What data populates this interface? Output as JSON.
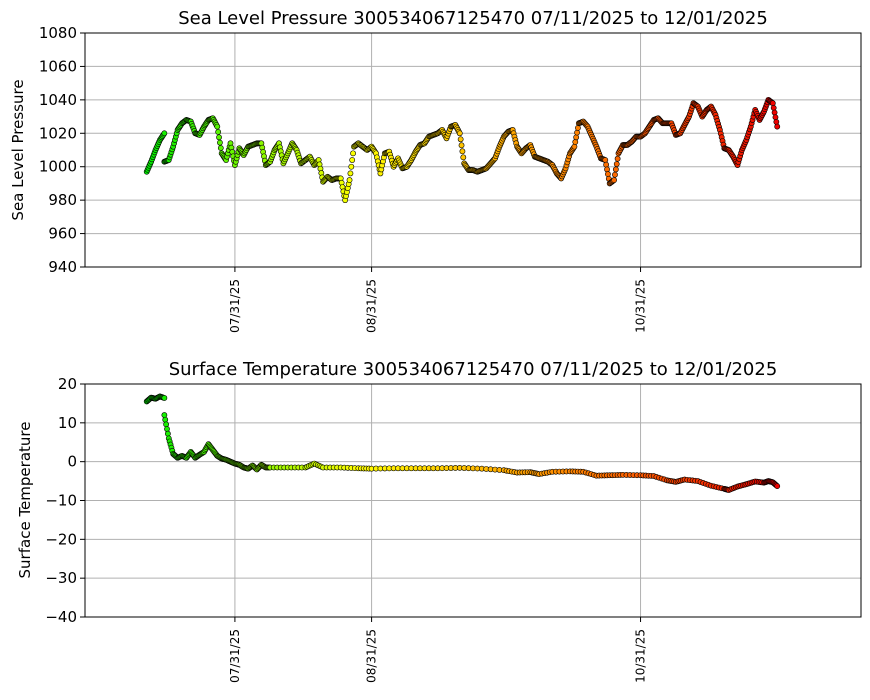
{
  "chart_data": [
    {
      "type": "scatter",
      "title": "Sea Level Pressure 300534067125470  07/11/2025 to 12/01/2025",
      "xlabel": "",
      "ylabel": "Sea Level Pressure",
      "ylim": [
        940,
        1080
      ],
      "yticks": [
        "940",
        "960",
        "980",
        "1000",
        "1020",
        "1040",
        "1060",
        "1080"
      ],
      "xlim": [
        "2025-06-27",
        "2025-12-20"
      ],
      "xticks": [
        {
          "date": "2025-07-31",
          "label": "07/31/25"
        },
        {
          "date": "2025-08-31",
          "label": "08/31/25"
        },
        {
          "date": "2025-10-31",
          "label": "10/31/25"
        }
      ],
      "grid": true,
      "color_gradient": [
        "#00ee00",
        "#ffff00",
        "#ff8800",
        "#ee0000"
      ],
      "points": [
        [
          "2025-07-11",
          997
        ],
        [
          "2025-07-12",
          1003
        ],
        [
          "2025-07-13",
          1010
        ],
        [
          "2025-07-14",
          1016
        ],
        [
          "2025-07-15",
          1020
        ],
        [
          "2025-07-15",
          1003
        ],
        [
          "2025-07-16",
          1004
        ],
        [
          "2025-07-17",
          1012
        ],
        [
          "2025-07-18",
          1022
        ],
        [
          "2025-07-19",
          1026
        ],
        [
          "2025-07-20",
          1028
        ],
        [
          "2025-07-21",
          1027
        ],
        [
          "2025-07-22",
          1020
        ],
        [
          "2025-07-23",
          1019
        ],
        [
          "2025-07-24",
          1024
        ],
        [
          "2025-07-25",
          1028
        ],
        [
          "2025-07-26",
          1029
        ],
        [
          "2025-07-27",
          1024
        ],
        [
          "2025-07-28",
          1008
        ],
        [
          "2025-07-29",
          1004
        ],
        [
          "2025-07-30",
          1014
        ],
        [
          "2025-07-31",
          1001
        ],
        [
          "2025-08-01",
          1011
        ],
        [
          "2025-08-02",
          1007
        ],
        [
          "2025-08-03",
          1012
        ],
        [
          "2025-08-04",
          1013
        ],
        [
          "2025-08-05",
          1014
        ],
        [
          "2025-08-06",
          1014
        ],
        [
          "2025-08-07",
          1001
        ],
        [
          "2025-08-08",
          1003
        ],
        [
          "2025-08-09",
          1010
        ],
        [
          "2025-08-10",
          1014
        ],
        [
          "2025-08-11",
          1002
        ],
        [
          "2025-08-12",
          1008
        ],
        [
          "2025-08-13",
          1014
        ],
        [
          "2025-08-14",
          1010
        ],
        [
          "2025-08-15",
          1002
        ],
        [
          "2025-08-16",
          1004
        ],
        [
          "2025-08-17",
          1006
        ],
        [
          "2025-08-18",
          1001
        ],
        [
          "2025-08-19",
          1004
        ],
        [
          "2025-08-20",
          991
        ],
        [
          "2025-08-21",
          994
        ],
        [
          "2025-08-22",
          992
        ],
        [
          "2025-08-23",
          993
        ],
        [
          "2025-08-24",
          993
        ],
        [
          "2025-08-25",
          980
        ],
        [
          "2025-08-26",
          992
        ],
        [
          "2025-08-27",
          1012
        ],
        [
          "2025-08-28",
          1014
        ],
        [
          "2025-08-29",
          1012
        ],
        [
          "2025-08-30",
          1010
        ],
        [
          "2025-08-31",
          1012
        ],
        [
          "2025-09-01",
          1008
        ],
        [
          "2025-09-02",
          996
        ],
        [
          "2025-09-03",
          1008
        ],
        [
          "2025-09-04",
          1009
        ],
        [
          "2025-09-05",
          1000
        ],
        [
          "2025-09-06",
          1005
        ],
        [
          "2025-09-07",
          999
        ],
        [
          "2025-09-08",
          1000
        ],
        [
          "2025-09-09",
          1004
        ],
        [
          "2025-09-10",
          1009
        ],
        [
          "2025-09-11",
          1013
        ],
        [
          "2025-09-12",
          1014
        ],
        [
          "2025-09-13",
          1018
        ],
        [
          "2025-09-14",
          1019
        ],
        [
          "2025-09-15",
          1020
        ],
        [
          "2025-09-16",
          1022
        ],
        [
          "2025-09-17",
          1017
        ],
        [
          "2025-09-18",
          1024
        ],
        [
          "2025-09-19",
          1025
        ],
        [
          "2025-09-20",
          1020
        ],
        [
          "2025-09-21",
          1002
        ],
        [
          "2025-09-22",
          998
        ],
        [
          "2025-09-23",
          998
        ],
        [
          "2025-09-24",
          997
        ],
        [
          "2025-09-25",
          998
        ],
        [
          "2025-09-26",
          999
        ],
        [
          "2025-09-27",
          1002
        ],
        [
          "2025-09-28",
          1005
        ],
        [
          "2025-09-29",
          1012
        ],
        [
          "2025-09-30",
          1018
        ],
        [
          "2025-10-01",
          1021
        ],
        [
          "2025-10-02",
          1022
        ],
        [
          "2025-10-03",
          1012
        ],
        [
          "2025-10-04",
          1008
        ],
        [
          "2025-10-05",
          1011
        ],
        [
          "2025-10-06",
          1013
        ],
        [
          "2025-10-07",
          1006
        ],
        [
          "2025-10-08",
          1005
        ],
        [
          "2025-10-09",
          1004
        ],
        [
          "2025-10-10",
          1003
        ],
        [
          "2025-10-11",
          1001
        ],
        [
          "2025-10-12",
          996
        ],
        [
          "2025-10-13",
          993
        ],
        [
          "2025-10-14",
          999
        ],
        [
          "2025-10-15",
          1008
        ],
        [
          "2025-10-16",
          1012
        ],
        [
          "2025-10-17",
          1026
        ],
        [
          "2025-10-18",
          1027
        ],
        [
          "2025-10-19",
          1024
        ],
        [
          "2025-10-20",
          1018
        ],
        [
          "2025-10-21",
          1012
        ],
        [
          "2025-10-22",
          1005
        ],
        [
          "2025-10-23",
          1004
        ],
        [
          "2025-10-24",
          990
        ],
        [
          "2025-10-25",
          992
        ],
        [
          "2025-10-26",
          1008
        ],
        [
          "2025-10-27",
          1013
        ],
        [
          "2025-10-28",
          1013
        ],
        [
          "2025-10-29",
          1015
        ],
        [
          "2025-10-30",
          1018
        ],
        [
          "2025-10-31",
          1018
        ],
        [
          "2025-11-01",
          1020
        ],
        [
          "2025-11-02",
          1024
        ],
        [
          "2025-11-03",
          1028
        ],
        [
          "2025-11-04",
          1029
        ],
        [
          "2025-11-05",
          1026
        ],
        [
          "2025-11-06",
          1026
        ],
        [
          "2025-11-07",
          1026
        ],
        [
          "2025-11-08",
          1019
        ],
        [
          "2025-11-09",
          1020
        ],
        [
          "2025-11-10",
          1025
        ],
        [
          "2025-11-11",
          1030
        ],
        [
          "2025-11-12",
          1038
        ],
        [
          "2025-11-13",
          1036
        ],
        [
          "2025-11-14",
          1030
        ],
        [
          "2025-11-15",
          1034
        ],
        [
          "2025-11-16",
          1036
        ],
        [
          "2025-11-17",
          1031
        ],
        [
          "2025-11-18",
          1022
        ],
        [
          "2025-11-19",
          1011
        ],
        [
          "2025-11-20",
          1010
        ],
        [
          "2025-11-21",
          1006
        ],
        [
          "2025-11-22",
          1001
        ],
        [
          "2025-11-23",
          1010
        ],
        [
          "2025-11-24",
          1016
        ],
        [
          "2025-11-25",
          1024
        ],
        [
          "2025-11-26",
          1034
        ],
        [
          "2025-11-27",
          1028
        ],
        [
          "2025-11-28",
          1033
        ],
        [
          "2025-11-29",
          1040
        ],
        [
          "2025-11-30",
          1038
        ],
        [
          "2025-12-01",
          1024
        ]
      ]
    },
    {
      "type": "scatter",
      "title": "Surface Temperature 300534067125470  07/11/2025 to 12/01/2025",
      "xlabel": "",
      "ylabel": "Surface Temperature",
      "ylim": [
        -40,
        20
      ],
      "yticks": [
        "−40",
        "−30",
        "−20",
        "−10",
        "0",
        "10",
        "20"
      ],
      "xlim": [
        "2025-06-27",
        "2025-12-20"
      ],
      "xticks": [
        {
          "date": "2025-07-31",
          "label": "07/31/25"
        },
        {
          "date": "2025-08-31",
          "label": "08/31/25"
        },
        {
          "date": "2025-10-31",
          "label": "10/31/25"
        }
      ],
      "grid": true,
      "color_gradient": [
        "#00ee00",
        "#ffff00",
        "#ff8800",
        "#ee0000"
      ],
      "points": [
        [
          "2025-07-11",
          15.5
        ],
        [
          "2025-07-12",
          16.5
        ],
        [
          "2025-07-13",
          16.2
        ],
        [
          "2025-07-14",
          16.8
        ],
        [
          "2025-07-15",
          16.4
        ],
        [
          "2025-07-15",
          12
        ],
        [
          "2025-07-16",
          6
        ],
        [
          "2025-07-17",
          2
        ],
        [
          "2025-07-18",
          1
        ],
        [
          "2025-07-19",
          1.5
        ],
        [
          "2025-07-20",
          1
        ],
        [
          "2025-07-21",
          2.5
        ],
        [
          "2025-07-22",
          1
        ],
        [
          "2025-07-23",
          1.8
        ],
        [
          "2025-07-24",
          2.5
        ],
        [
          "2025-07-25",
          4.5
        ],
        [
          "2025-07-26",
          3
        ],
        [
          "2025-07-27",
          1.5
        ],
        [
          "2025-07-28",
          0.8
        ],
        [
          "2025-07-29",
          0.5
        ],
        [
          "2025-07-30",
          0
        ],
        [
          "2025-07-31",
          -0.5
        ],
        [
          "2025-08-01",
          -0.8
        ],
        [
          "2025-08-02",
          -1.5
        ],
        [
          "2025-08-03",
          -1.8
        ],
        [
          "2025-08-04",
          -1
        ],
        [
          "2025-08-05",
          -2
        ],
        [
          "2025-08-06",
          -0.8
        ],
        [
          "2025-08-07",
          -1.5
        ],
        [
          "2025-08-08",
          -1.5
        ],
        [
          "2025-08-12",
          -1.5
        ],
        [
          "2025-08-16",
          -1.5
        ],
        [
          "2025-08-18",
          -0.5
        ],
        [
          "2025-08-20",
          -1.5
        ],
        [
          "2025-08-24",
          -1.5
        ],
        [
          "2025-08-28",
          -1.7
        ],
        [
          "2025-08-31",
          -1.8
        ],
        [
          "2025-09-05",
          -1.7
        ],
        [
          "2025-09-10",
          -1.7
        ],
        [
          "2025-09-15",
          -1.7
        ],
        [
          "2025-09-20",
          -1.6
        ],
        [
          "2025-09-25",
          -1.8
        ],
        [
          "2025-09-30",
          -2.2
        ],
        [
          "2025-10-03",
          -2.8
        ],
        [
          "2025-10-06",
          -2.7
        ],
        [
          "2025-10-08",
          -3.2
        ],
        [
          "2025-10-11",
          -2.6
        ],
        [
          "2025-10-15",
          -2.5
        ],
        [
          "2025-10-18",
          -2.6
        ],
        [
          "2025-10-21",
          -3.6
        ],
        [
          "2025-10-24",
          -3.5
        ],
        [
          "2025-10-27",
          -3.4
        ],
        [
          "2025-10-31",
          -3.5
        ],
        [
          "2025-11-03",
          -3.7
        ],
        [
          "2025-11-06",
          -4.8
        ],
        [
          "2025-11-08",
          -5.2
        ],
        [
          "2025-11-10",
          -4.6
        ],
        [
          "2025-11-13",
          -5.0
        ],
        [
          "2025-11-16",
          -6.2
        ],
        [
          "2025-11-19",
          -7.0
        ],
        [
          "2025-11-20",
          -7.3
        ],
        [
          "2025-11-22",
          -6.4
        ],
        [
          "2025-11-24",
          -5.8
        ],
        [
          "2025-11-26",
          -5.1
        ],
        [
          "2025-11-28",
          -5.4
        ],
        [
          "2025-11-29",
          -5.0
        ],
        [
          "2025-11-30",
          -5.3
        ],
        [
          "2025-12-01",
          -6.3
        ]
      ]
    }
  ]
}
